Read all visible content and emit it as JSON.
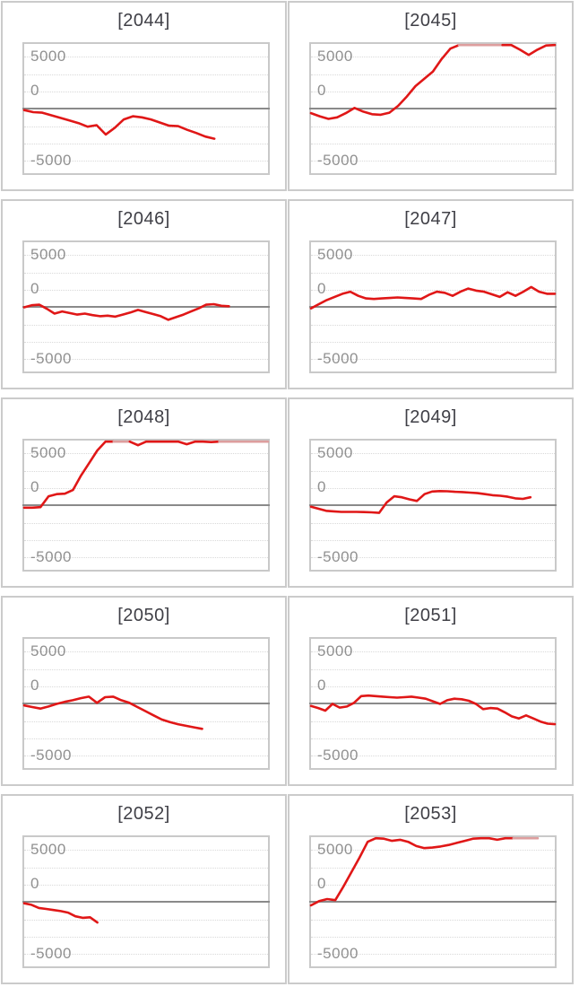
{
  "page": {
    "background": "#ffffff"
  },
  "axis": {
    "y_labels": [
      "5000",
      "0",
      "-5000"
    ],
    "y_ticks": [
      5000,
      0,
      -5000
    ],
    "ylim": [
      -6500,
      6500
    ],
    "grid": "dotted horizontal lines every ~1667 units, solid dark line at 0"
  },
  "style": {
    "line_color": "#e01717",
    "clipped_line_color": "#dd9e9e",
    "grid_color": "#d9d9d9",
    "zero_line_color": "#8a8a8a",
    "plot_border_color": "#c9c9c9",
    "card_border_color": "#cbcbcb",
    "label_color": "#919191",
    "title_color": "#3f3f46"
  },
  "chart_data": [
    {
      "type": "line",
      "title": "[2044]",
      "x_end": 0.78,
      "clip": 6400,
      "values": [
        -100,
        -300,
        -350,
        -600,
        -850,
        -1100,
        -1350,
        -1700,
        -1550,
        -2450,
        -1800,
        -1000,
        -700,
        -800,
        -1000,
        -1300,
        -1600,
        -1650,
        -2000,
        -2300,
        -2650,
        -2850
      ]
    },
    {
      "type": "line",
      "title": "[2045]",
      "x_end": 1.0,
      "clip": 6400,
      "values": [
        -400,
        -700,
        -950,
        -800,
        -400,
        100,
        -250,
        -500,
        -550,
        -350,
        300,
        1200,
        2200,
        2900,
        3600,
        4800,
        5800,
        6400,
        6400,
        6400,
        6400,
        6400,
        6400,
        6200,
        5700,
        5200,
        5700,
        6100,
        6400
      ]
    },
    {
      "type": "line",
      "title": "[2046]",
      "x_end": 0.84,
      "clip": 6400,
      "values": [
        0,
        200,
        250,
        -150,
        -600,
        -400,
        -550,
        -700,
        -600,
        -750,
        -850,
        -800,
        -900,
        -700,
        -500,
        -250,
        -450,
        -650,
        -850,
        -1200,
        -950,
        -700,
        -400,
        -100,
        250,
        300,
        150,
        100
      ]
    },
    {
      "type": "line",
      "title": "[2047]",
      "x_end": 1.0,
      "clip": 6400,
      "values": [
        -100,
        300,
        700,
        1000,
        1300,
        1500,
        1100,
        850,
        800,
        850,
        900,
        950,
        900,
        850,
        800,
        1200,
        1500,
        1400,
        1100,
        1500,
        1800,
        1600,
        1500,
        1250,
        1000,
        1450,
        1100,
        1500,
        1950,
        1500,
        1300,
        1300
      ]
    },
    {
      "type": "line",
      "title": "[2048]",
      "x_end": 1.0,
      "clip": 6400,
      "values": [
        -200,
        -200,
        -150,
        900,
        1100,
        1150,
        1500,
        2900,
        4100,
        5300,
        6200,
        6400,
        6400,
        6400,
        5800,
        6300,
        6400,
        6350,
        6400,
        6200,
        5900,
        6400,
        6250,
        6100,
        6400,
        6400,
        6400,
        6400,
        6400,
        6400,
        6400
      ]
    },
    {
      "type": "line",
      "title": "[2049]",
      "x_end": 0.9,
      "clip": 6400,
      "values": [
        -100,
        -300,
        -500,
        -550,
        -600,
        -600,
        -600,
        -620,
        -650,
        -700,
        300,
        900,
        800,
        600,
        450,
        1100,
        1350,
        1400,
        1380,
        1330,
        1300,
        1250,
        1200,
        1100,
        1000,
        950,
        850,
        700,
        650,
        800
      ]
    },
    {
      "type": "line",
      "title": "[2050]",
      "x_end": 0.73,
      "clip": 6400,
      "values": [
        -150,
        -300,
        -450,
        -250,
        0,
        200,
        350,
        550,
        700,
        100,
        650,
        700,
        350,
        100,
        -300,
        -700,
        -1100,
        -1500,
        -1750,
        -1950,
        -2100,
        -2250,
        -2400
      ]
    },
    {
      "type": "line",
      "title": "[2051]",
      "x_end": 1.0,
      "clip": 6400,
      "values": [
        -200,
        -400,
        -650,
        0,
        -350,
        -250,
        100,
        750,
        800,
        750,
        700,
        650,
        600,
        650,
        700,
        600,
        500,
        250,
        0,
        350,
        500,
        450,
        300,
        0,
        -500,
        -400,
        -450,
        -800,
        -1200,
        -1400,
        -1100,
        -1400,
        -1700,
        -1900,
        -1950
      ]
    },
    {
      "type": "line",
      "title": "[2052]",
      "x_end": 0.3,
      "clip": 6400,
      "values": [
        -100,
        -250,
        -550,
        -650,
        -750,
        -850,
        -1000,
        -1350,
        -1500,
        -1450,
        -1950
      ]
    },
    {
      "type": "line",
      "title": "[2053]",
      "x_end": 0.93,
      "clip": 6400,
      "values": [
        -300,
        100,
        300,
        200,
        1500,
        2900,
        4300,
        5800,
        6400,
        6100,
        5900,
        6000,
        5800,
        5400,
        5200,
        5250,
        5350,
        5500,
        5700,
        5900,
        6100,
        6400,
        6300,
        6000,
        6300,
        6400,
        6400,
        6400,
        6400
      ]
    }
  ]
}
